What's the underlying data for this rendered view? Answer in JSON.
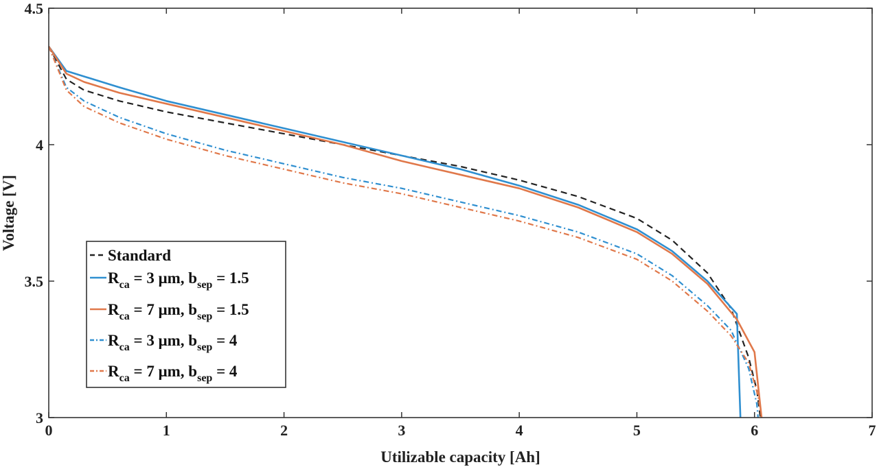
{
  "chart_data": {
    "type": "line",
    "xlabel": "Utilizable capacity [Ah]",
    "ylabel": "Voltage [V]",
    "xlim": [
      0,
      7
    ],
    "ylim": [
      3,
      4.5
    ],
    "xticks": [
      0,
      1,
      2,
      3,
      4,
      5,
      6,
      7
    ],
    "yticks": [
      3,
      3.5,
      4,
      4.5
    ],
    "xtick_labels": [
      "0",
      "1",
      "2",
      "3",
      "4",
      "5",
      "6",
      "7"
    ],
    "ytick_labels": [
      "3",
      "3.5",
      "4",
      "4.5"
    ],
    "grid": false,
    "legend_position": "lower-left",
    "series": [
      {
        "name": "Standard",
        "legend": {
          "main": "Standard",
          "sub1": "",
          "mid": "",
          "sub2": "",
          "tail": ""
        },
        "color": "#222222",
        "dash": "dashed",
        "points": [
          [
            0,
            4.36
          ],
          [
            0.15,
            4.24
          ],
          [
            0.3,
            4.2
          ],
          [
            0.6,
            4.16
          ],
          [
            1,
            4.12
          ],
          [
            1.5,
            4.08
          ],
          [
            2,
            4.04
          ],
          [
            2.5,
            4.0
          ],
          [
            3,
            3.96
          ],
          [
            3.5,
            3.92
          ],
          [
            4,
            3.87
          ],
          [
            4.5,
            3.81
          ],
          [
            5,
            3.73
          ],
          [
            5.3,
            3.65
          ],
          [
            5.6,
            3.53
          ],
          [
            5.8,
            3.4
          ],
          [
            5.95,
            3.22
          ],
          [
            6.02,
            3.1
          ],
          [
            6.05,
            3.0
          ]
        ]
      },
      {
        "name": "R_ca = 3 μm, b_sep = 1.5",
        "legend": {
          "main": "R",
          "sub1": "ca",
          "mid": " = 3 μm, b",
          "sub2": "sep",
          "tail": " = 1.5"
        },
        "color": "#2f8fd0",
        "dash": "solid",
        "points": [
          [
            0,
            4.36
          ],
          [
            0.15,
            4.27
          ],
          [
            0.3,
            4.25
          ],
          [
            0.6,
            4.21
          ],
          [
            1,
            4.16
          ],
          [
            1.5,
            4.11
          ],
          [
            2,
            4.06
          ],
          [
            2.5,
            4.01
          ],
          [
            3,
            3.96
          ],
          [
            3.5,
            3.91
          ],
          [
            4,
            3.85
          ],
          [
            4.5,
            3.78
          ],
          [
            5,
            3.69
          ],
          [
            5.3,
            3.61
          ],
          [
            5.6,
            3.5
          ],
          [
            5.85,
            3.38
          ],
          [
            5.88,
            3.0
          ]
        ]
      },
      {
        "name": "R_ca = 7 μm, b_sep = 1.5",
        "legend": {
          "main": "R",
          "sub1": "ca",
          "mid": " = 7 μm, b",
          "sub2": "sep",
          "tail": " = 1.5"
        },
        "color": "#e0784a",
        "dash": "solid",
        "points": [
          [
            0,
            4.36
          ],
          [
            0.15,
            4.26
          ],
          [
            0.3,
            4.23
          ],
          [
            0.6,
            4.19
          ],
          [
            1,
            4.15
          ],
          [
            1.5,
            4.1
          ],
          [
            2,
            4.05
          ],
          [
            2.5,
            4.0
          ],
          [
            3,
            3.94
          ],
          [
            3.5,
            3.89
          ],
          [
            4,
            3.84
          ],
          [
            4.5,
            3.77
          ],
          [
            5,
            3.68
          ],
          [
            5.3,
            3.6
          ],
          [
            5.6,
            3.49
          ],
          [
            5.85,
            3.36
          ],
          [
            6.0,
            3.24
          ],
          [
            6.06,
            3.0
          ]
        ]
      },
      {
        "name": "R_ca = 3 μm, b_sep = 4",
        "legend": {
          "main": "R",
          "sub1": "ca",
          "mid": " = 3 μm, b",
          "sub2": "sep",
          "tail": " = 4"
        },
        "color": "#2f8fd0",
        "dash": "dashdot",
        "points": [
          [
            0,
            4.36
          ],
          [
            0.15,
            4.21
          ],
          [
            0.3,
            4.16
          ],
          [
            0.6,
            4.1
          ],
          [
            1,
            4.04
          ],
          [
            1.5,
            3.98
          ],
          [
            2,
            3.93
          ],
          [
            2.5,
            3.88
          ],
          [
            3,
            3.84
          ],
          [
            3.5,
            3.79
          ],
          [
            4,
            3.74
          ],
          [
            4.5,
            3.68
          ],
          [
            5,
            3.6
          ],
          [
            5.3,
            3.52
          ],
          [
            5.6,
            3.41
          ],
          [
            5.8,
            3.32
          ],
          [
            5.95,
            3.18
          ],
          [
            6.02,
            3.05
          ],
          [
            6.03,
            3.0
          ]
        ]
      },
      {
        "name": "R_ca = 7 μm, b_sep = 4",
        "legend": {
          "main": "R",
          "sub1": "ca",
          "mid": " = 7 μm, b",
          "sub2": "sep",
          "tail": " = 4"
        },
        "color": "#e0784a",
        "dash": "dashdot",
        "points": [
          [
            0,
            4.36
          ],
          [
            0.15,
            4.2
          ],
          [
            0.3,
            4.14
          ],
          [
            0.6,
            4.08
          ],
          [
            1,
            4.02
          ],
          [
            1.5,
            3.96
          ],
          [
            2,
            3.91
          ],
          [
            2.5,
            3.86
          ],
          [
            3,
            3.82
          ],
          [
            3.5,
            3.77
          ],
          [
            4,
            3.72
          ],
          [
            4.5,
            3.66
          ],
          [
            5,
            3.58
          ],
          [
            5.3,
            3.5
          ],
          [
            5.6,
            3.39
          ],
          [
            5.8,
            3.3
          ],
          [
            5.95,
            3.2
          ],
          [
            6.03,
            3.08
          ],
          [
            6.06,
            3.0
          ]
        ]
      }
    ]
  }
}
